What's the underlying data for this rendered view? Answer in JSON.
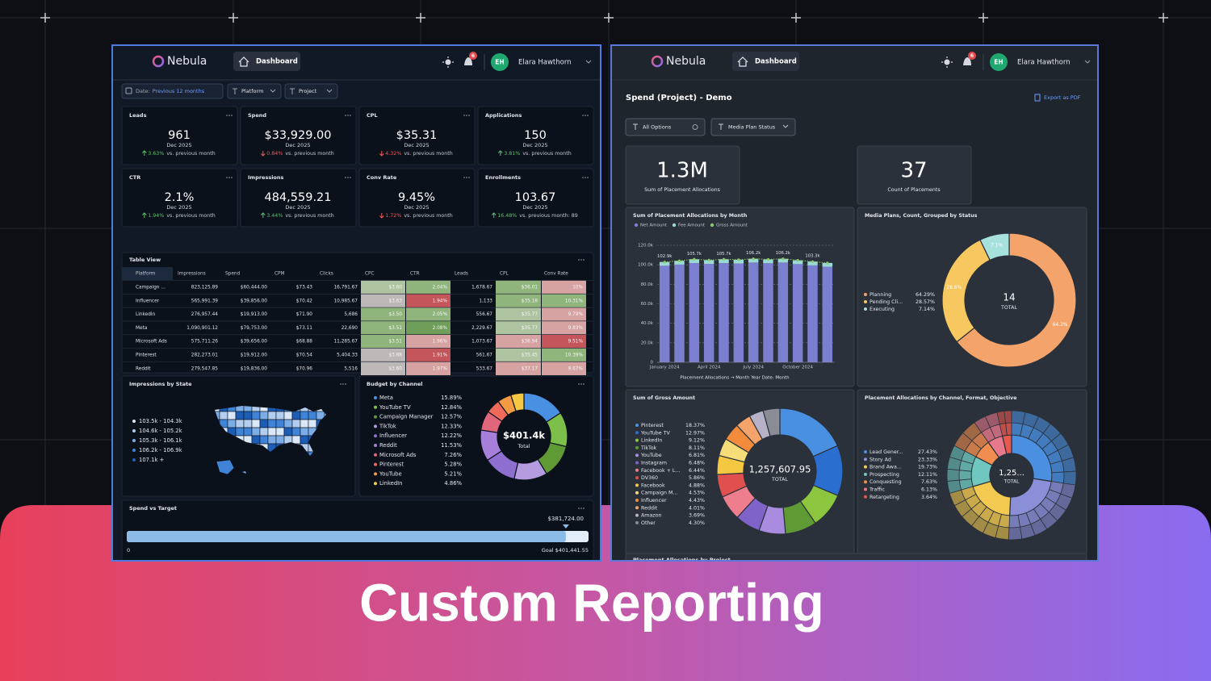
{
  "background_title": "Custom Reporting",
  "left": {
    "header": {
      "logo": "Nebula",
      "nav": "Dashboard",
      "badge": "6",
      "avatar": "EH",
      "user": "Elara Hawthorn"
    },
    "filters": {
      "date_label": "Date:",
      "date_value": "Previous 12 months",
      "platform": "Platform",
      "project": "Project"
    },
    "kpis": [
      {
        "label": "Leads",
        "value": "961",
        "period": "Dec 2025",
        "change": "3.63%",
        "direction": "up",
        "note": "vs. previous month"
      },
      {
        "label": "Spend",
        "value": "$33,929.00",
        "period": "Dec 2025",
        "change": "0.84%",
        "direction": "down",
        "note": "vs. previous month"
      },
      {
        "label": "CPL",
        "value": "$35.31",
        "period": "Dec 2025",
        "change": "4.32%",
        "direction": "down",
        "note": "vs. previous month"
      },
      {
        "label": "Applications",
        "value": "150",
        "period": "Dec 2025",
        "change": "3.81%",
        "direction": "up",
        "note": "vs. previous month"
      },
      {
        "label": "CTR",
        "value": "2.1%",
        "period": "Dec 2025",
        "change": "1.94%",
        "direction": "up",
        "note": "vs. previous month"
      },
      {
        "label": "Impressions",
        "value": "484,559.21",
        "period": "Dec 2025",
        "change": "3.44%",
        "direction": "up",
        "note": "vs. previous month"
      },
      {
        "label": "Conv Rate",
        "value": "9.45%",
        "period": "Dec 2025",
        "change": "1.72%",
        "direction": "down",
        "note": "vs. previous month"
      },
      {
        "label": "Enrollments",
        "value": "103.67",
        "period": "Dec 2025",
        "change": "16.48%",
        "direction": "up",
        "note": "vs. previous month: 89"
      }
    ],
    "table": {
      "title": "Table View",
      "columns": [
        "Platform",
        "Impressions",
        "Spend",
        "CPM",
        "Clicks",
        "CPC",
        "CTR",
        "Leads",
        "CPL",
        "Conv Rate"
      ],
      "rows": [
        [
          "Campaign ...",
          "823,125.89",
          "$60,444.00",
          "$73.43",
          "16,791.67",
          "$3.60",
          "2.04%",
          "1,678.67",
          "$36.01",
          "10%"
        ],
        [
          "Influencer",
          "565,991.39",
          "$39,856.00",
          "$70.42",
          "10,985.67",
          "$3.63",
          "1.94%",
          "1,133",
          "$35.18",
          "10.31%"
        ],
        [
          "LinkedIn",
          "276,957.44",
          "$19,913.00",
          "$71.90",
          "5,686",
          "$3.50",
          "2.05%",
          "556.67",
          "$35.77",
          "9.79%"
        ],
        [
          "Meta",
          "1,090,901.12",
          "$79,753.00",
          "$73.11",
          "22,690",
          "$3.51",
          "2.08%",
          "2,229.67",
          "$35.77",
          "9.83%"
        ],
        [
          "Microsoft Ads",
          "575,711.26",
          "$39,656.00",
          "$68.88",
          "11,285.67",
          "$3.51",
          "1.96%",
          "1,073.67",
          "$36.94",
          "9.51%"
        ],
        [
          "Pinterest",
          "282,273.01",
          "$19,912.00",
          "$70.54",
          "5,404.33",
          "$3.68",
          "1.91%",
          "561.67",
          "$35.45",
          "10.39%"
        ],
        [
          "Reddit",
          "279,547.85",
          "$19,836.00",
          "$70.96",
          "5,516",
          "$3.60",
          "1.97%",
          "533.67",
          "$37.17",
          "9.67%"
        ]
      ]
    },
    "map": {
      "title": "Impressions by State",
      "legend": [
        {
          "label": "103.5k - 104.3k",
          "color": "#dbe8f7"
        },
        {
          "label": "104.6k - 105.2k",
          "color": "#b3cdef"
        },
        {
          "label": "105.3k - 106.1k",
          "color": "#7cade6"
        },
        {
          "label": "106.2k - 106.9k",
          "color": "#3f84d6"
        },
        {
          "label": "107.1k +",
          "color": "#1d5db6"
        }
      ]
    },
    "budget": {
      "title": "Budget by Channel",
      "total": "$401.4k",
      "total_label": "Total",
      "items": [
        {
          "name": "Meta",
          "value": 15.89,
          "label": "15.89%",
          "color": "#4a90e2"
        },
        {
          "name": "YouTube TV",
          "value": 12.84,
          "label": "12.84%",
          "color": "#7cc04a"
        },
        {
          "name": "Campaign Manager",
          "value": 12.57,
          "label": "12.57%",
          "color": "#5f9a35"
        },
        {
          "name": "TikTok",
          "value": 12.33,
          "label": "12.33%",
          "color": "#b59be0"
        },
        {
          "name": "Influencer",
          "value": 12.22,
          "label": "12.22%",
          "color": "#8e6fd0"
        },
        {
          "name": "Reddit",
          "value": 11.53,
          "label": "11.53%",
          "color": "#a57fd9"
        },
        {
          "name": "Microsoft Ads",
          "value": 7.26,
          "label": "7.26%",
          "color": "#e0667c"
        },
        {
          "name": "Pinterest",
          "value": 5.28,
          "label": "5.28%",
          "color": "#ef6a5a"
        },
        {
          "name": "YouTube",
          "value": 5.21,
          "label": "5.21%",
          "color": "#f39a42"
        },
        {
          "name": "LinkedIn",
          "value": 4.86,
          "label": "4.86%",
          "color": "#f5c842"
        }
      ]
    },
    "target": {
      "title": "Spend vs Target",
      "current": {
        "value": 381724,
        "label": "$381,724.00"
      },
      "start": {
        "value": 0,
        "label": "0"
      },
      "goal": {
        "value": 401441.55,
        "label": "Goal $401,441.55"
      }
    }
  },
  "right": {
    "header": {
      "logo": "Nebula",
      "nav": "Dashboard",
      "badge": "6",
      "avatar": "EH",
      "user": "Elara Hawthorn"
    },
    "title": "Spend (Project) - Demo",
    "export": "Export as PDF",
    "filters": {
      "options": "All Options",
      "status": "Media Plan Status"
    },
    "kpis": [
      {
        "value": "1.3M",
        "label": "Sum of Placement Allocations"
      },
      {
        "value": "37",
        "label": "Count of Placements"
      }
    ],
    "bar_chart": {
      "type": "bar",
      "title": "Sum of Placement Allocations by Month",
      "categories": [
        "January 2024",
        null,
        null,
        "April 2024",
        null,
        null,
        "July 2024",
        null,
        null,
        "October 2024",
        null,
        null
      ],
      "series": [
        {
          "name": "Net Amount",
          "color": "#7c7fd0",
          "values": [
            99000,
            100200,
            101800,
            100900,
            101800,
            101300,
            102300,
            101600,
            102300,
            100700,
            99400,
            98000
          ]
        },
        {
          "name": "Fee Amount",
          "color": "#9ad9d4",
          "values": [
            3900,
            3900,
            3900,
            3900,
            3900,
            3900,
            3900,
            3900,
            3900,
            3900,
            3900,
            3900
          ]
        },
        {
          "name": "Gross Amount",
          "color": "#8cc66a",
          "values": [
            102900,
            104100,
            105700,
            104800,
            105700,
            105200,
            106200,
            105500,
            106200,
            104600,
            103300,
            101900
          ],
          "value_labels": [
            "102.9k",
            null,
            "105.7k",
            null,
            "105.7k",
            null,
            "106.2k",
            null,
            "106.2k",
            null,
            "103.3k",
            null
          ]
        }
      ],
      "ylim": [
        0,
        120000
      ],
      "yticks": [
        0,
        {
          "value": 20000,
          "label": "20.0k"
        },
        {
          "value": 40000,
          "label": "40.0k"
        },
        {
          "value": 60000,
          "label": "60.0k"
        },
        {
          "value": 80000,
          "label": "80.0k"
        },
        {
          "value": 100000,
          "label": "100.0k"
        },
        {
          "value": 120000,
          "label": "120.0k"
        }
      ],
      "grid": true,
      "x_label": "Placement Allocations → Month Year Date: Month"
    },
    "status_donut": {
      "type": "pie",
      "title": "Media Plans, Count, Grouped by Status",
      "total": "14",
      "total_label": "TOTAL",
      "items": [
        {
          "name": "Planning",
          "value": 64.29,
          "label": "64.29%",
          "slice_label": "64.3%",
          "color": "#f4a46a"
        },
        {
          "name": "Pending Cli...",
          "value": 28.57,
          "label": "28.57%",
          "slice_label": "28.6%",
          "color": "#f6c85f"
        },
        {
          "name": "Executing",
          "value": 7.14,
          "label": "7.14%",
          "slice_label": "7.1%",
          "color": "#a6e1dc"
        }
      ]
    },
    "gross_donut": {
      "type": "pie",
      "title": "Sum of Gross Amount",
      "total": "1,257,607.95",
      "total_label": "TOTAL",
      "items": [
        {
          "name": "Pinterest",
          "value": 18.37,
          "label": "18.37%",
          "color": "#4a90e2"
        },
        {
          "name": "YouTube TV",
          "value": 12.97,
          "label": "12.97%",
          "color": "#2a6fcf"
        },
        {
          "name": "LinkedIn",
          "value": 9.12,
          "label": "9.12%",
          "color": "#8cc63f"
        },
        {
          "name": "TikTok",
          "value": 8.11,
          "label": "8.11%",
          "color": "#5f9a35"
        },
        {
          "name": "YouTube",
          "value": 6.81,
          "label": "6.81%",
          "color": "#a98ce0"
        },
        {
          "name": "Instagram",
          "value": 6.48,
          "label": "6.48%",
          "color": "#7f63c8"
        },
        {
          "name": "Facebook + L...",
          "value": 6.44,
          "label": "6.44%",
          "color": "#ee7e8e"
        },
        {
          "name": "DV360",
          "value": 5.86,
          "label": "5.86%",
          "color": "#e0504f"
        },
        {
          "name": "Facebook",
          "value": 4.88,
          "label": "4.88%",
          "color": "#f5c842"
        },
        {
          "name": "Campaign M...",
          "value": 4.53,
          "label": "4.53%",
          "color": "#f7dc7a"
        },
        {
          "name": "Influencer",
          "value": 4.43,
          "label": "4.43%",
          "color": "#f28c3c"
        },
        {
          "name": "Reddit",
          "value": 4.01,
          "label": "4.01%",
          "color": "#f4a46a"
        },
        {
          "name": "Amazon",
          "value": 3.69,
          "label": "3.69%",
          "color": "#b8b2c8"
        },
        {
          "name": "Other",
          "value": 4.3,
          "label": "4.30%",
          "color": "#8a8d96"
        }
      ]
    },
    "sunburst": {
      "type": "pie",
      "title": "Placement Allocations by Channel, Format, Objective",
      "total": "1,25...",
      "total_label": "TOTAL",
      "items": [
        {
          "name": "Lead Gener...",
          "value": 27.43,
          "label": "27.43%",
          "color": "#4a8fe0"
        },
        {
          "name": "Story Ad",
          "value": 23.33,
          "label": "23.33%",
          "color": "#8b8fd8"
        },
        {
          "name": "Brand Awa...",
          "value": 19.73,
          "label": "19.73%",
          "color": "#f3c94f"
        },
        {
          "name": "Prospecting",
          "value": 12.11,
          "label": "12.11%",
          "color": "#6fc7c0"
        },
        {
          "name": "Conquesting",
          "value": 7.63,
          "label": "7.63%",
          "color": "#f08d4f"
        },
        {
          "name": "Traffic",
          "value": 6.13,
          "label": "6.13%",
          "color": "#e8788c"
        },
        {
          "name": "Retargeting",
          "value": 3.64,
          "label": "3.64%",
          "color": "#e8584f"
        }
      ]
    },
    "next_card_title": "Placement Allocations by Project"
  }
}
